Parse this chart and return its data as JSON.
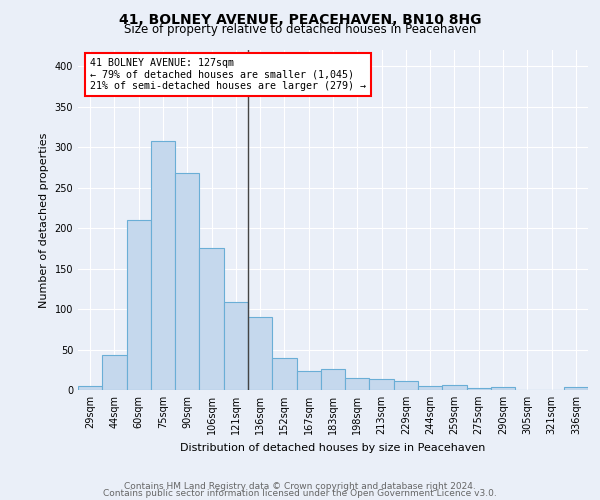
{
  "title1": "41, BOLNEY AVENUE, PEACEHAVEN, BN10 8HG",
  "title2": "Size of property relative to detached houses in Peacehaven",
  "xlabel": "Distribution of detached houses by size in Peacehaven",
  "ylabel": "Number of detached properties",
  "categories": [
    "29sqm",
    "44sqm",
    "60sqm",
    "75sqm",
    "90sqm",
    "106sqm",
    "121sqm",
    "136sqm",
    "152sqm",
    "167sqm",
    "183sqm",
    "198sqm",
    "213sqm",
    "229sqm",
    "244sqm",
    "259sqm",
    "275sqm",
    "290sqm",
    "305sqm",
    "321sqm",
    "336sqm"
  ],
  "values": [
    5,
    43,
    210,
    308,
    268,
    176,
    109,
    90,
    39,
    24,
    26,
    15,
    14,
    11,
    5,
    6,
    3,
    4,
    0,
    0,
    4
  ],
  "bar_color": "#c5d8ed",
  "bar_edge_color": "#6aaed6",
  "vline_index": 6.5,
  "annotation_box_text": "41 BOLNEY AVENUE: 127sqm\n← 79% of detached houses are smaller (1,045)\n21% of semi-detached houses are larger (279) →",
  "annotation_box_color": "white",
  "annotation_box_edge_color": "red",
  "footer1": "Contains HM Land Registry data © Crown copyright and database right 2024.",
  "footer2": "Contains public sector information licensed under the Open Government Licence v3.0.",
  "ylim": [
    0,
    420
  ],
  "yticks": [
    0,
    50,
    100,
    150,
    200,
    250,
    300,
    350,
    400
  ],
  "background_color": "#eaeff8",
  "grid_color": "white",
  "title1_fontsize": 10,
  "title2_fontsize": 8.5,
  "ylabel_fontsize": 8,
  "xlabel_fontsize": 8,
  "tick_fontsize": 7,
  "footer_fontsize": 6.5,
  "footer_color": "#666666"
}
